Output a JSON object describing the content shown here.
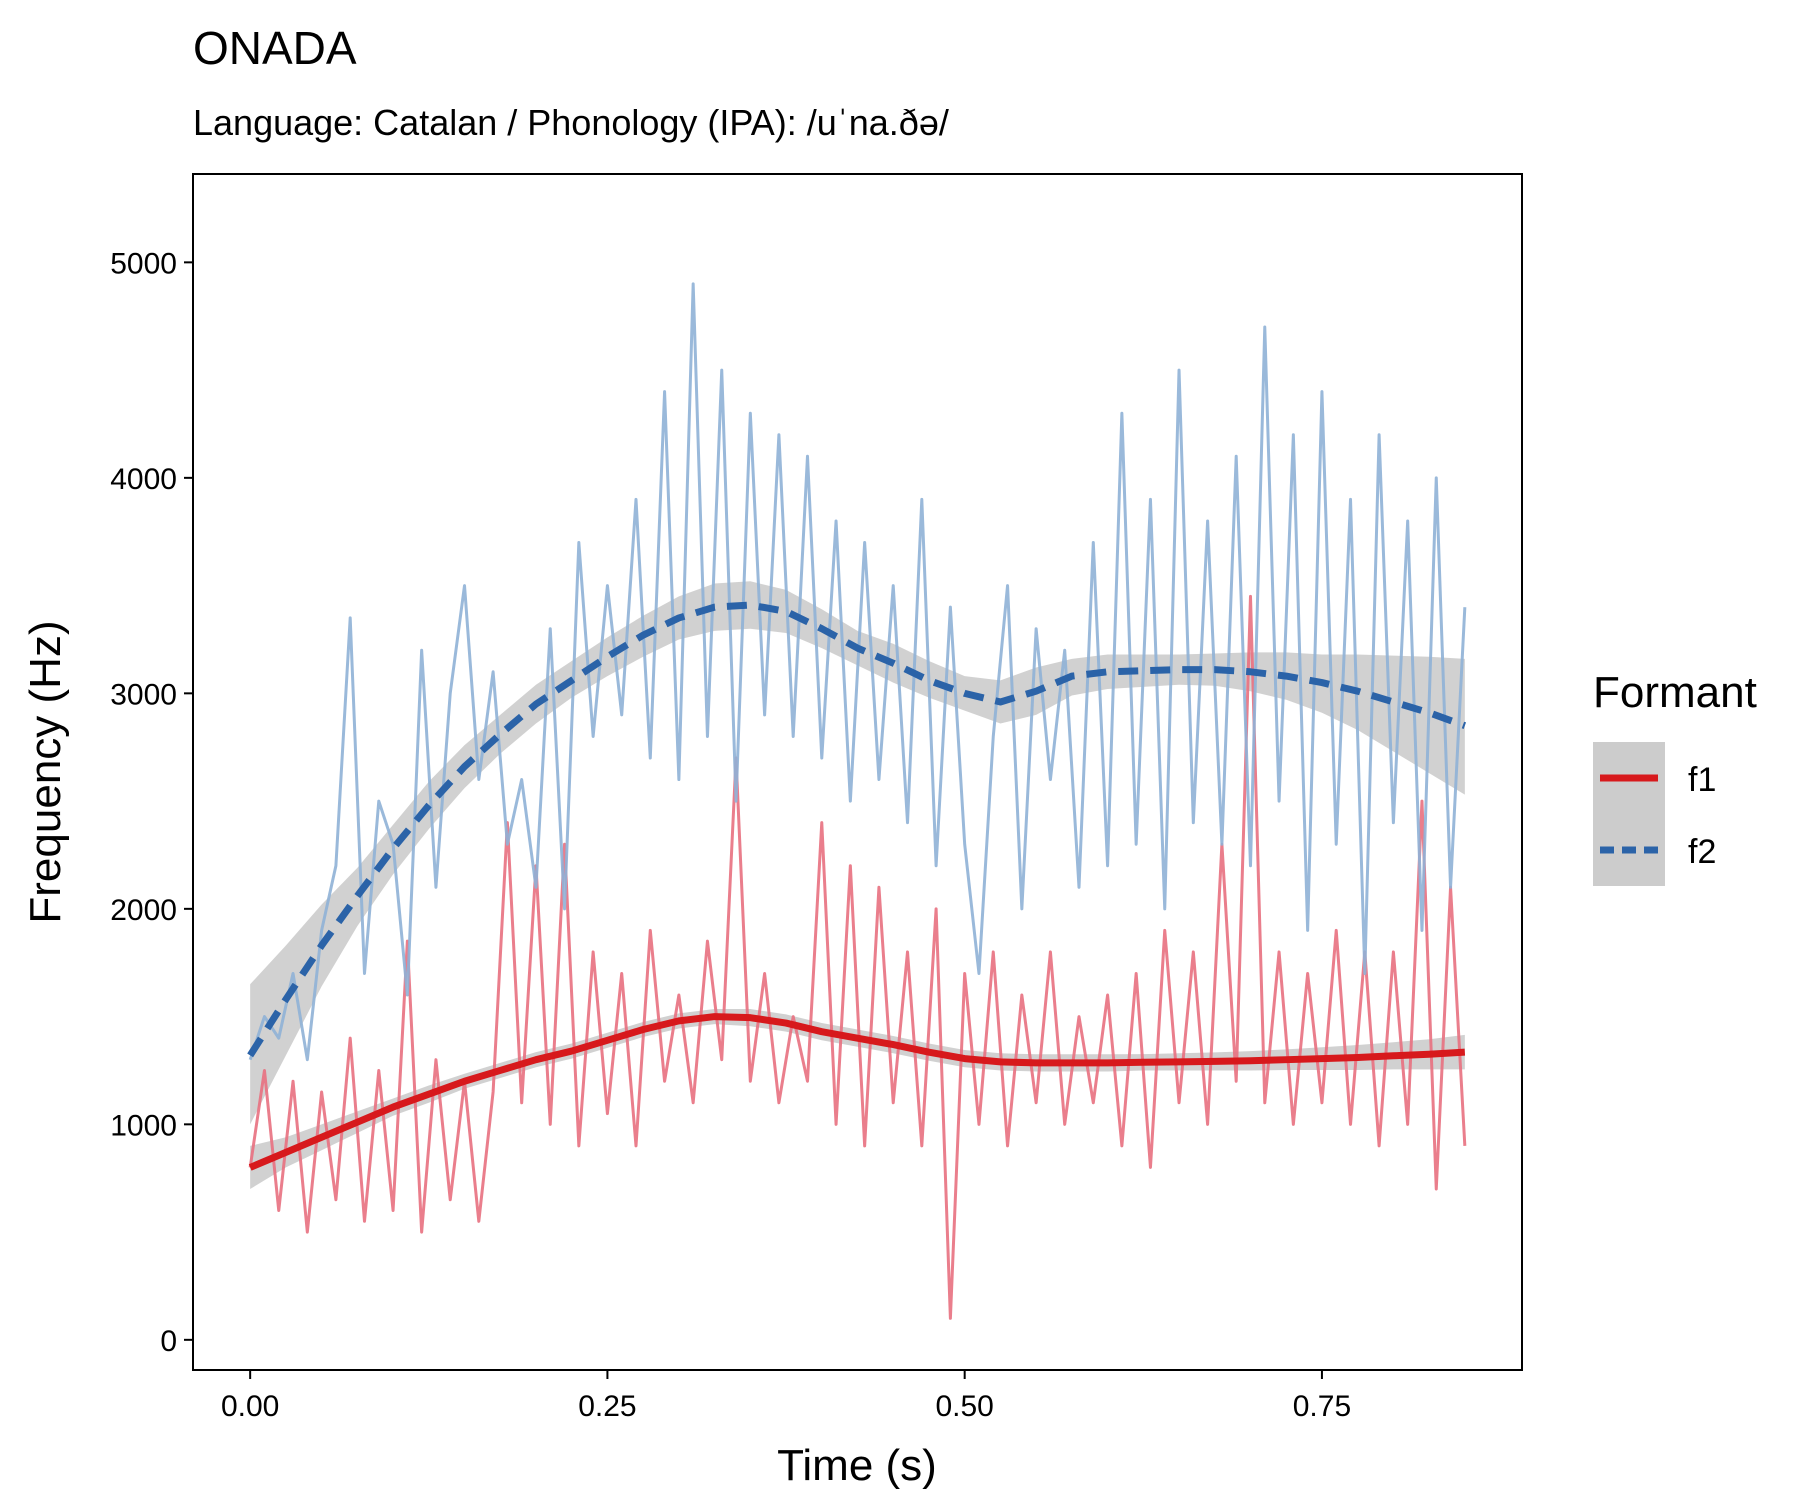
{
  "chart_data": {
    "type": "line",
    "title": "ONADA",
    "subtitle": "Language: Catalan / Phonology (IPA): /uˈna.ðə/",
    "xlabel": "Time (s)",
    "ylabel": "Frequency (Hz)",
    "xlim": [
      -0.04,
      0.89
    ],
    "ylim": [
      -140,
      5410
    ],
    "x_ticks": [
      0.0,
      0.25,
      0.5,
      0.75
    ],
    "x_tick_labels": [
      "0.00",
      "0.25",
      "0.50",
      "0.75"
    ],
    "y_ticks": [
      0,
      1000,
      2000,
      3000,
      4000,
      5000
    ],
    "y_tick_labels": [
      "0",
      "1000",
      "2000",
      "3000",
      "4000",
      "5000"
    ],
    "grid": false,
    "legend": {
      "title": "Formant",
      "placement": "right",
      "entries": [
        "f1",
        "f2"
      ]
    },
    "raw_series": [
      {
        "name": "f1",
        "color": "#E8707F",
        "x": [
          0.0,
          0.01,
          0.02,
          0.03,
          0.04,
          0.05,
          0.06,
          0.07,
          0.08,
          0.09,
          0.1,
          0.11,
          0.12,
          0.13,
          0.14,
          0.15,
          0.16,
          0.17,
          0.18,
          0.19,
          0.2,
          0.21,
          0.22,
          0.23,
          0.24,
          0.25,
          0.26,
          0.27,
          0.28,
          0.29,
          0.3,
          0.31,
          0.32,
          0.33,
          0.34,
          0.35,
          0.36,
          0.37,
          0.38,
          0.39,
          0.4,
          0.41,
          0.42,
          0.43,
          0.44,
          0.45,
          0.46,
          0.47,
          0.48,
          0.49,
          0.5,
          0.51,
          0.52,
          0.53,
          0.54,
          0.55,
          0.56,
          0.57,
          0.58,
          0.59,
          0.6,
          0.61,
          0.62,
          0.63,
          0.64,
          0.65,
          0.66,
          0.67,
          0.68,
          0.69,
          0.7,
          0.71,
          0.72,
          0.73,
          0.74,
          0.75,
          0.76,
          0.77,
          0.78,
          0.79,
          0.8,
          0.81,
          0.82,
          0.83,
          0.84,
          0.85
        ],
        "y": [
          800,
          1250,
          600,
          1200,
          500,
          1150,
          650,
          1400,
          550,
          1250,
          600,
          1850,
          500,
          1300,
          650,
          1200,
          550,
          1150,
          2400,
          1100,
          2200,
          1000,
          2300,
          900,
          1800,
          1050,
          1700,
          900,
          1900,
          1200,
          1600,
          1100,
          1850,
          1300,
          2700,
          1200,
          1700,
          1100,
          1500,
          1200,
          2400,
          1000,
          2200,
          900,
          2100,
          1100,
          1800,
          900,
          2000,
          100,
          1700,
          1000,
          1800,
          900,
          1600,
          1100,
          1800,
          1000,
          1500,
          1100,
          1600,
          900,
          1700,
          800,
          1900,
          1100,
          1800,
          1000,
          2300,
          1200,
          3450,
          1100,
          1800,
          1000,
          1700,
          1100,
          1900,
          1000,
          1800,
          900,
          1800,
          1000,
          2500,
          700,
          2100,
          900
        ]
      },
      {
        "name": "f2",
        "color": "#8FB1D6",
        "x": [
          0.0,
          0.01,
          0.02,
          0.03,
          0.04,
          0.05,
          0.06,
          0.07,
          0.08,
          0.09,
          0.1,
          0.11,
          0.12,
          0.13,
          0.14,
          0.15,
          0.16,
          0.17,
          0.18,
          0.19,
          0.2,
          0.21,
          0.22,
          0.23,
          0.24,
          0.25,
          0.26,
          0.27,
          0.28,
          0.29,
          0.3,
          0.31,
          0.32,
          0.33,
          0.34,
          0.35,
          0.36,
          0.37,
          0.38,
          0.39,
          0.4,
          0.41,
          0.42,
          0.43,
          0.44,
          0.45,
          0.46,
          0.47,
          0.48,
          0.49,
          0.5,
          0.51,
          0.52,
          0.53,
          0.54,
          0.55,
          0.56,
          0.57,
          0.58,
          0.59,
          0.6,
          0.61,
          0.62,
          0.63,
          0.64,
          0.65,
          0.66,
          0.67,
          0.68,
          0.69,
          0.7,
          0.71,
          0.72,
          0.73,
          0.74,
          0.75,
          0.76,
          0.77,
          0.78,
          0.79,
          0.8,
          0.81,
          0.82,
          0.83,
          0.84,
          0.85
        ],
        "y": [
          1300,
          1500,
          1400,
          1700,
          1300,
          1900,
          2200,
          3350,
          1700,
          2500,
          2300,
          1600,
          3200,
          2100,
          3000,
          3500,
          2600,
          3100,
          2300,
          2600,
          2100,
          3300,
          2000,
          3700,
          2800,
          3500,
          2900,
          3900,
          2700,
          4400,
          2600,
          4900,
          2800,
          4500,
          2500,
          4300,
          2900,
          4200,
          2800,
          4100,
          2700,
          3800,
          2500,
          3700,
          2600,
          3500,
          2400,
          3900,
          2200,
          3400,
          2300,
          1700,
          2800,
          3500,
          2000,
          3300,
          2600,
          3200,
          2100,
          3700,
          2200,
          4300,
          2300,
          3900,
          2000,
          4500,
          2400,
          3800,
          2300,
          4100,
          2200,
          4700,
          2500,
          4200,
          1900,
          4400,
          2300,
          3900,
          1700,
          4200,
          2400,
          3800,
          1900,
          4000,
          2100,
          3400
        ]
      }
    ],
    "series": [
      {
        "name": "f1",
        "color": "#D7191C",
        "line": "solid",
        "x": [
          0.0,
          0.025,
          0.05,
          0.075,
          0.1,
          0.125,
          0.15,
          0.175,
          0.2,
          0.225,
          0.25,
          0.275,
          0.3,
          0.325,
          0.35,
          0.375,
          0.4,
          0.425,
          0.45,
          0.475,
          0.5,
          0.525,
          0.55,
          0.575,
          0.6,
          0.625,
          0.65,
          0.675,
          0.7,
          0.725,
          0.75,
          0.775,
          0.8,
          0.825,
          0.85
        ],
        "y": [
          800,
          870,
          940,
          1010,
          1080,
          1140,
          1200,
          1250,
          1300,
          1340,
          1390,
          1440,
          1480,
          1500,
          1495,
          1470,
          1430,
          1400,
          1370,
          1335,
          1305,
          1290,
          1285,
          1285,
          1285,
          1288,
          1290,
          1292,
          1295,
          1300,
          1305,
          1310,
          1318,
          1325,
          1335
        ],
        "ci_low": [
          700,
          800,
          880,
          960,
          1040,
          1100,
          1165,
          1215,
          1265,
          1305,
          1355,
          1405,
          1445,
          1465,
          1455,
          1430,
          1390,
          1360,
          1330,
          1295,
          1265,
          1250,
          1245,
          1245,
          1245,
          1250,
          1250,
          1250,
          1250,
          1252,
          1252,
          1252,
          1255,
          1255,
          1255
        ],
        "ci_high": [
          900,
          940,
          1000,
          1060,
          1120,
          1180,
          1235,
          1285,
          1335,
          1375,
          1425,
          1475,
          1515,
          1535,
          1535,
          1510,
          1470,
          1440,
          1410,
          1375,
          1345,
          1330,
          1325,
          1325,
          1325,
          1326,
          1330,
          1334,
          1340,
          1348,
          1358,
          1368,
          1381,
          1395,
          1415
        ]
      },
      {
        "name": "f2",
        "color": "#2B63A8",
        "line": "dashed",
        "x": [
          0.0,
          0.025,
          0.05,
          0.075,
          0.1,
          0.125,
          0.15,
          0.175,
          0.2,
          0.225,
          0.25,
          0.275,
          0.3,
          0.325,
          0.35,
          0.375,
          0.4,
          0.425,
          0.45,
          0.475,
          0.5,
          0.525,
          0.55,
          0.575,
          0.6,
          0.625,
          0.65,
          0.675,
          0.7,
          0.725,
          0.75,
          0.775,
          0.8,
          0.825,
          0.85
        ],
        "y": [
          1320,
          1580,
          1830,
          2060,
          2280,
          2480,
          2660,
          2810,
          2950,
          3060,
          3170,
          3270,
          3350,
          3400,
          3410,
          3380,
          3300,
          3210,
          3140,
          3060,
          3000,
          2960,
          3010,
          3080,
          3100,
          3105,
          3110,
          3110,
          3100,
          3080,
          3050,
          3010,
          2960,
          2910,
          2850
        ],
        "ci_low": [
          1000,
          1320,
          1640,
          1920,
          2160,
          2370,
          2560,
          2720,
          2860,
          2980,
          3080,
          3170,
          3250,
          3290,
          3300,
          3280,
          3210,
          3130,
          3050,
          2980,
          2920,
          2860,
          2900,
          2990,
          3020,
          3030,
          3040,
          3035,
          3010,
          2970,
          2910,
          2830,
          2730,
          2630,
          2530
        ],
        "ci_high": [
          1650,
          1830,
          2020,
          2190,
          2390,
          2590,
          2760,
          2900,
          3040,
          3150,
          3260,
          3360,
          3450,
          3510,
          3520,
          3480,
          3390,
          3290,
          3230,
          3150,
          3080,
          3060,
          3120,
          3160,
          3180,
          3180,
          3180,
          3185,
          3190,
          3190,
          3180,
          3180,
          3175,
          3170,
          3160
        ]
      }
    ]
  }
}
